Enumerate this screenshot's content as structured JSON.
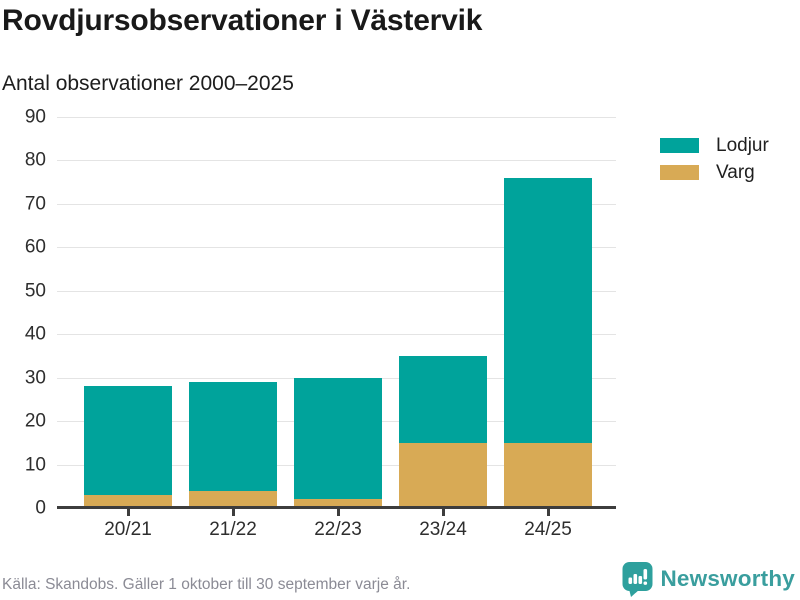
{
  "header": {
    "title": "Rovdjursobservationer i Västervik",
    "subtitle": "Antal observationer 2000–2025"
  },
  "legend": {
    "items": [
      {
        "label": "Lodjur",
        "color": "#00A39B"
      },
      {
        "label": "Varg",
        "color": "#D8AA55"
      }
    ]
  },
  "chart_data": {
    "type": "bar",
    "stacked": true,
    "title": "Rovdjursobservationer i Västervik",
    "subtitle": "Antal observationer 2000–2025",
    "categories": [
      "20/21",
      "21/22",
      "22/23",
      "23/24",
      "24/25"
    ],
    "series": [
      {
        "name": "Varg",
        "color": "#D8AA55",
        "values": [
          3,
          4,
          2,
          15,
          15
        ]
      },
      {
        "name": "Lodjur",
        "color": "#00A39B",
        "values": [
          25,
          25,
          28,
          20,
          61
        ]
      }
    ],
    "stack_order_bottom_to_top": [
      "Varg",
      "Lodjur"
    ],
    "totals": [
      28,
      29,
      30,
      35,
      76
    ],
    "xlabel": "",
    "ylabel": "Antal observationer",
    "ylim": [
      0,
      90
    ],
    "yticks": [
      0,
      10,
      20,
      30,
      40,
      50,
      60,
      70,
      80,
      90
    ],
    "grid": true,
    "legend_position": "top-right"
  },
  "footer": {
    "source": "Källa: Skandobs. Gäller 1 oktober till 30 september varje år.",
    "brand": "Newsworthy"
  },
  "colors": {
    "lodjur": "#00A39B",
    "varg": "#D8AA55",
    "gridline": "#e4e4e4",
    "baseline": "#3d3d3d",
    "axis_text": "#2e2e2e",
    "title_text": "#191919",
    "footer_text": "#8b8b95",
    "brand_teal": "#3a9e9e",
    "icon_teal": "#2ea09d"
  }
}
